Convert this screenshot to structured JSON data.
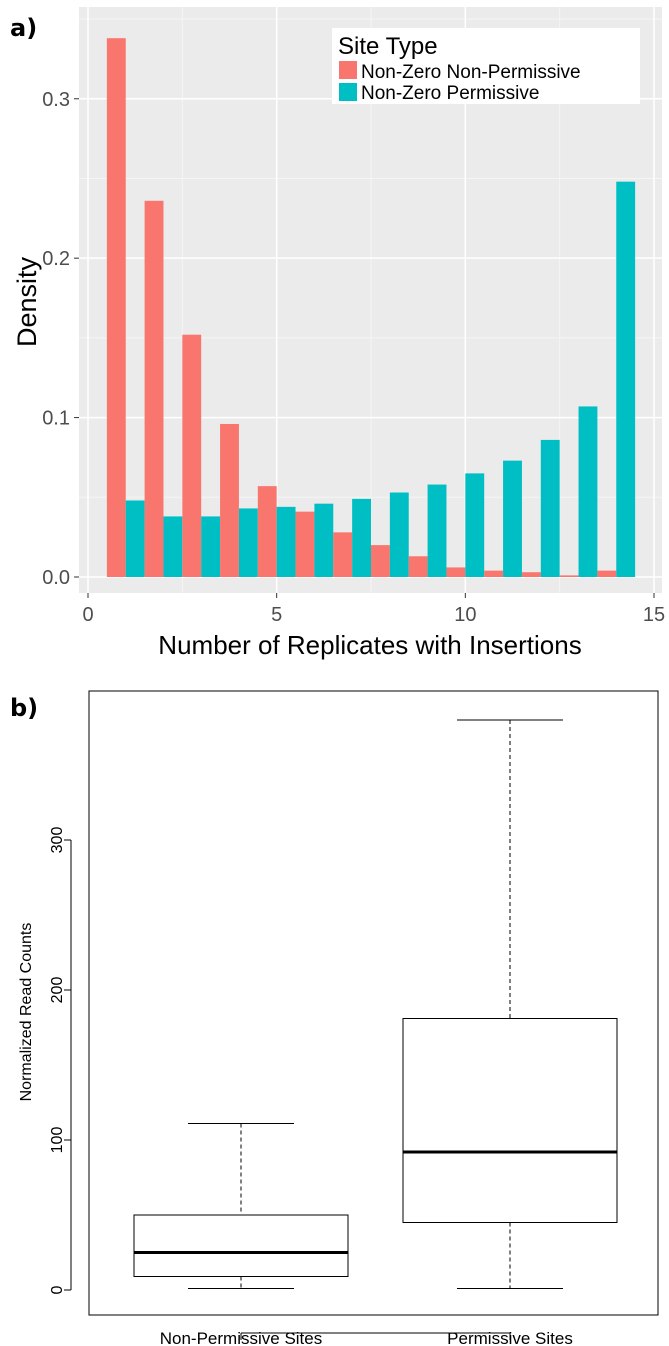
{
  "panels": {
    "a_label": "a)",
    "b_label": "b)"
  },
  "chart_data": [
    {
      "type": "bar",
      "panel": "a)",
      "xlabel": "Number of Replicates with Insertions",
      "ylabel": "Density",
      "xlim": [
        0,
        15
      ],
      "ylim": [
        0,
        0.34
      ],
      "x_ticks": [
        0,
        5,
        10,
        15
      ],
      "y_ticks": [
        0.0,
        0.1,
        0.2,
        0.3
      ],
      "x_tick_labels": [
        "0",
        "5",
        "10",
        "15"
      ],
      "y_tick_labels": [
        "0.0",
        "0.1",
        "0.2",
        "0.3"
      ],
      "grid": true,
      "legend": {
        "title": "Site Type",
        "placement": "top-right"
      },
      "categories": [
        1,
        2,
        3,
        4,
        5,
        6,
        7,
        8,
        9,
        10,
        11,
        12,
        13,
        14
      ],
      "series": [
        {
          "name": "Non-Zero Non-Permissive",
          "color": "#F8766D",
          "values": [
            0.338,
            0.236,
            0.152,
            0.096,
            0.057,
            0.041,
            0.028,
            0.02,
            0.013,
            0.006,
            0.004,
            0.003,
            0.001,
            0.004
          ]
        },
        {
          "name": "Non-Zero Permissive",
          "color": "#00BFC4",
          "values": [
            0.048,
            0.038,
            0.038,
            0.043,
            0.044,
            0.046,
            0.049,
            0.053,
            0.058,
            0.065,
            0.073,
            0.086,
            0.107,
            0.248
          ]
        }
      ]
    },
    {
      "type": "box",
      "panel": "b)",
      "xlabel": "",
      "ylabel": "Normalized Read Counts",
      "ylim": [
        0,
        380
      ],
      "y_ticks": [
        0,
        100,
        200,
        300
      ],
      "y_tick_labels": [
        "0",
        "100",
        "200",
        "300"
      ],
      "categories": [
        "Non-Permissive Sites",
        "Permissive Sites"
      ],
      "boxes": [
        {
          "name": "Non-Permissive Sites",
          "min": 1,
          "q1": 9,
          "median": 25,
          "q3": 50,
          "max": 111
        },
        {
          "name": "Permissive Sites",
          "min": 1,
          "q1": 45,
          "median": 92,
          "q3": 181,
          "max": 380
        }
      ]
    }
  ]
}
